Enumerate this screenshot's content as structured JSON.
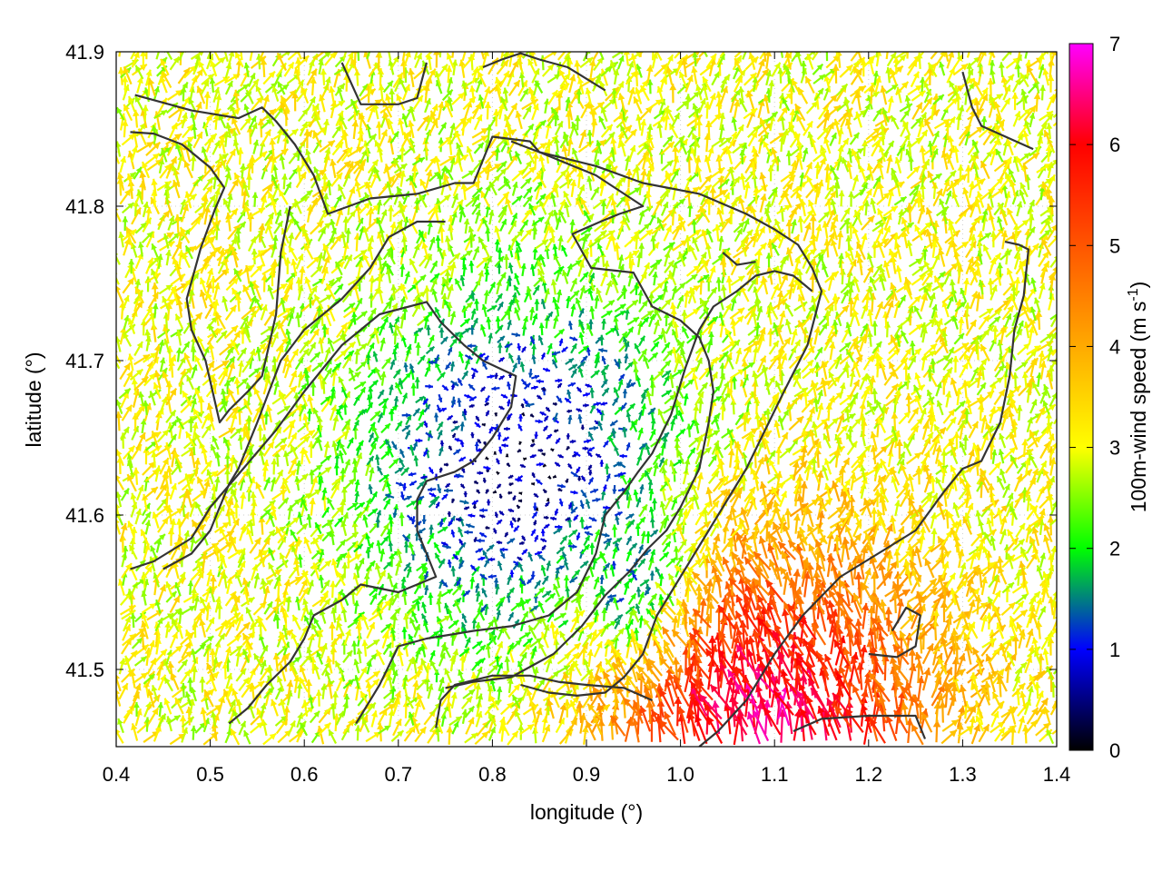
{
  "chart_data": {
    "type": "vector-field",
    "xlabel": "longitude (°)",
    "ylabel": "latitude (°)",
    "colorbar_label": "100m-wind speed (m s",
    "colorbar_label_sup": "-1",
    "colorbar_label_tail": ")",
    "xlim": [
      0.4,
      1.4
    ],
    "ylim": [
      41.45,
      41.9
    ],
    "x_ticks": [
      {
        "value": 0.4,
        "label": "0.4"
      },
      {
        "value": 0.5,
        "label": "0.5"
      },
      {
        "value": 0.6,
        "label": "0.6"
      },
      {
        "value": 0.7,
        "label": "0.7"
      },
      {
        "value": 0.8,
        "label": "0.8"
      },
      {
        "value": 0.9,
        "label": "0.9"
      },
      {
        "value": 1.0,
        "label": "1.0"
      },
      {
        "value": 1.1,
        "label": "1.1"
      },
      {
        "value": 1.2,
        "label": "1.2"
      },
      {
        "value": 1.3,
        "label": "1.3"
      },
      {
        "value": 1.4,
        "label": "1.4"
      }
    ],
    "y_ticks": [
      {
        "value": 41.5,
        "label": "41.5"
      },
      {
        "value": 41.6,
        "label": "41.6"
      },
      {
        "value": 41.7,
        "label": "41.7"
      },
      {
        "value": 41.8,
        "label": "41.8"
      },
      {
        "value": 41.9,
        "label": "41.9"
      }
    ],
    "colorbar": {
      "range": [
        0,
        7
      ],
      "ticks": [
        {
          "value": 0,
          "label": "0"
        },
        {
          "value": 1,
          "label": "1"
        },
        {
          "value": 2,
          "label": "2"
        },
        {
          "value": 3,
          "label": "3"
        },
        {
          "value": 4,
          "label": "4"
        },
        {
          "value": 5,
          "label": "5"
        },
        {
          "value": 6,
          "label": "6"
        },
        {
          "value": 7,
          "label": "7"
        }
      ],
      "stops": [
        {
          "value": 0,
          "color": "#000000"
        },
        {
          "value": 1,
          "color": "#0000ff"
        },
        {
          "value": 2,
          "color": "#00ff00"
        },
        {
          "value": 3,
          "color": "#ffff00"
        },
        {
          "value": 4,
          "color": "#ffaa00"
        },
        {
          "value": 5,
          "color": "#ff5500"
        },
        {
          "value": 6,
          "color": "#ff0000"
        },
        {
          "value": 7,
          "color": "#ff00ff"
        }
      ]
    },
    "grid": "dotted",
    "contour_color": "#333333",
    "contours": [
      [
        [
          0.42,
          41.872
        ],
        [
          0.48,
          41.862
        ],
        [
          0.53,
          41.857
        ],
        [
          0.555,
          41.864
        ],
        [
          0.57,
          41.855
        ],
        [
          0.59,
          41.84
        ],
        [
          0.61,
          41.82
        ],
        [
          0.625,
          41.795
        ],
        [
          0.67,
          41.805
        ],
        [
          0.72,
          41.808
        ],
        [
          0.76,
          41.815
        ],
        [
          0.78,
          41.815
        ],
        [
          0.8,
          41.845
        ],
        [
          0.84,
          41.842
        ],
        [
          0.85,
          41.835
        ],
        [
          0.87,
          41.83
        ],
        [
          0.91,
          41.82
        ],
        [
          0.96,
          41.8
        ],
        [
          0.935,
          41.795
        ],
        [
          0.915,
          41.79
        ],
        [
          0.885,
          41.782
        ],
        [
          0.905,
          41.76
        ],
        [
          0.95,
          41.757
        ],
        [
          0.97,
          41.735
        ],
        [
          1.0,
          41.726
        ],
        [
          1.02,
          41.715
        ],
        [
          1.03,
          41.7
        ],
        [
          1.035,
          41.68
        ],
        [
          1.03,
          41.66
        ],
        [
          1.02,
          41.63
        ],
        [
          1.0,
          41.605
        ],
        [
          0.985,
          41.59
        ],
        [
          0.965,
          41.578
        ],
        [
          0.945,
          41.563
        ],
        [
          0.92,
          41.548
        ],
        [
          0.895,
          41.528
        ],
        [
          0.865,
          41.51
        ],
        [
          0.82,
          41.495
        ],
        [
          0.78,
          41.492
        ],
        [
          0.75,
          41.488
        ]
      ],
      [
        [
          0.415,
          41.848
        ],
        [
          0.44,
          41.847
        ],
        [
          0.47,
          41.84
        ],
        [
          0.5,
          41.825
        ],
        [
          0.515,
          41.812
        ],
        [
          0.505,
          41.798
        ],
        [
          0.49,
          41.773
        ],
        [
          0.475,
          41.74
        ],
        [
          0.48,
          41.72
        ],
        [
          0.495,
          41.7
        ],
        [
          0.51,
          41.66
        ],
        [
          0.52,
          41.668
        ],
        [
          0.54,
          41.68
        ],
        [
          0.555,
          41.69
        ],
        [
          0.57,
          41.73
        ],
        [
          0.575,
          41.77
        ],
        [
          0.585,
          41.8
        ]
      ],
      [
        [
          0.64,
          41.893
        ],
        [
          0.66,
          41.866
        ],
        [
          0.7,
          41.866
        ],
        [
          0.72,
          41.87
        ],
        [
          0.73,
          41.893
        ]
      ],
      [
        [
          0.79,
          41.89
        ],
        [
          0.81,
          41.895
        ],
        [
          0.83,
          41.899
        ],
        [
          0.85,
          41.895
        ],
        [
          0.88,
          41.89
        ],
        [
          0.92,
          41.875
        ]
      ],
      [
        [
          0.82,
          41.842
        ],
        [
          0.85,
          41.835
        ],
        [
          0.91,
          41.826
        ],
        [
          0.96,
          41.815
        ],
        [
          1.02,
          41.808
        ],
        [
          1.07,
          41.795
        ],
        [
          1.1,
          41.785
        ],
        [
          1.125,
          41.775
        ],
        [
          1.14,
          41.76
        ],
        [
          1.15,
          41.745
        ],
        [
          1.135,
          41.71
        ],
        [
          1.11,
          41.68
        ],
        [
          1.09,
          41.655
        ],
        [
          1.07,
          41.63
        ],
        [
          1.05,
          41.61
        ],
        [
          1.025,
          41.585
        ],
        [
          1.0,
          41.56
        ],
        [
          0.975,
          41.535
        ],
        [
          0.96,
          41.51
        ],
        [
          0.94,
          41.495
        ],
        [
          0.92,
          41.485
        ],
        [
          0.89,
          41.483
        ],
        [
          0.86,
          41.485
        ],
        [
          0.83,
          41.49
        ]
      ],
      [
        [
          1.045,
          41.77
        ],
        [
          1.06,
          41.762
        ],
        [
          1.08,
          41.764
        ]
      ],
      [
        [
          1.3,
          41.887
        ],
        [
          1.31,
          41.864
        ],
        [
          1.32,
          41.852
        ],
        [
          1.375,
          41.837
        ]
      ],
      [
        [
          1.345,
          41.777
        ],
        [
          1.36,
          41.775
        ],
        [
          1.37,
          41.772
        ],
        [
          1.365,
          41.742
        ],
        [
          1.355,
          41.72
        ],
        [
          1.35,
          41.69
        ],
        [
          1.34,
          41.66
        ],
        [
          1.32,
          41.635
        ],
        [
          1.3,
          41.63
        ],
        [
          1.28,
          41.615
        ],
        [
          1.25,
          41.59
        ],
        [
          1.21,
          41.575
        ],
        [
          1.17,
          41.56
        ],
        [
          1.13,
          41.535
        ],
        [
          1.1,
          41.51
        ],
        [
          1.07,
          41.48
        ],
        [
          1.04,
          41.46
        ],
        [
          1.02,
          41.45
        ]
      ],
      [
        [
          1.2,
          41.51
        ],
        [
          1.23,
          41.508
        ],
        [
          1.25,
          41.515
        ],
        [
          1.255,
          41.535
        ],
        [
          1.24,
          41.54
        ],
        [
          1.225,
          41.525
        ]
      ],
      [
        [
          1.12,
          41.46
        ],
        [
          1.15,
          41.468
        ],
        [
          1.2,
          41.47
        ],
        [
          1.25,
          41.47
        ],
        [
          1.26,
          41.455
        ]
      ],
      [
        [
          0.45,
          41.565
        ],
        [
          0.48,
          41.575
        ],
        [
          0.5,
          41.59
        ],
        [
          0.52,
          41.62
        ],
        [
          0.53,
          41.63
        ],
        [
          0.55,
          41.66
        ],
        [
          0.575,
          41.7
        ],
        [
          0.6,
          41.72
        ],
        [
          0.64,
          41.74
        ],
        [
          0.67,
          41.76
        ],
        [
          0.69,
          41.78
        ],
        [
          0.72,
          41.79
        ],
        [
          0.75,
          41.79
        ]
      ],
      [
        [
          0.415,
          41.565
        ],
        [
          0.44,
          41.57
        ],
        [
          0.48,
          41.585
        ],
        [
          0.5,
          41.605
        ],
        [
          0.535,
          41.63
        ],
        [
          0.57,
          41.655
        ],
        [
          0.6,
          41.68
        ],
        [
          0.64,
          41.71
        ],
        [
          0.68,
          41.73
        ],
        [
          0.73,
          41.738
        ],
        [
          0.745,
          41.725
        ],
        [
          0.77,
          41.71
        ],
        [
          0.79,
          41.7
        ],
        [
          0.825,
          41.69
        ],
        [
          0.82,
          41.67
        ],
        [
          0.8,
          41.65
        ],
        [
          0.78,
          41.635
        ],
        [
          0.76,
          41.628
        ],
        [
          0.73,
          41.622
        ],
        [
          0.72,
          41.61
        ],
        [
          0.72,
          41.59
        ],
        [
          0.73,
          41.575
        ],
        [
          0.74,
          41.56
        ],
        [
          0.7,
          41.55
        ],
        [
          0.66,
          41.555
        ],
        [
          0.64,
          41.545
        ],
        [
          0.61,
          41.535
        ],
        [
          0.6,
          41.52
        ],
        [
          0.585,
          41.505
        ],
        [
          0.56,
          41.49
        ],
        [
          0.54,
          41.475
        ],
        [
          0.52,
          41.465
        ]
      ],
      [
        [
          0.655,
          41.465
        ],
        [
          0.68,
          41.49
        ],
        [
          0.7,
          41.515
        ],
        [
          0.73,
          41.52
        ],
        [
          0.78,
          41.525
        ],
        [
          0.82,
          41.528
        ],
        [
          0.86,
          41.535
        ],
        [
          0.89,
          41.55
        ],
        [
          0.91,
          41.575
        ],
        [
          0.92,
          41.6
        ],
        [
          0.94,
          41.615
        ],
        [
          0.955,
          41.628
        ],
        [
          0.97,
          41.64
        ],
        [
          0.99,
          41.665
        ],
        [
          1.005,
          41.695
        ],
        [
          1.02,
          41.72
        ],
        [
          1.035,
          41.735
        ],
        [
          1.06,
          41.745
        ],
        [
          1.08,
          41.755
        ],
        [
          1.1,
          41.758
        ],
        [
          1.12,
          41.755
        ],
        [
          1.14,
          41.745
        ]
      ],
      [
        [
          0.74,
          41.462
        ],
        [
          0.745,
          41.48
        ],
        [
          0.76,
          41.49
        ],
        [
          0.8,
          41.496
        ],
        [
          0.84,
          41.496
        ],
        [
          0.87,
          41.492
        ],
        [
          0.9,
          41.49
        ],
        [
          0.94,
          41.488
        ],
        [
          0.97,
          41.48
        ]
      ]
    ],
    "wind_field": {
      "grid_step_deg": [
        0.0125,
        0.0056
      ],
      "dominant_direction": "north to north-east",
      "max_speed": 6.8,
      "description_regions": [
        {
          "region": "center low-wind basin",
          "speed_range": [
            0.2,
            1.5
          ]
        },
        {
          "region": "north and west margins",
          "speed_range": [
            2.5,
            4.5
          ]
        },
        {
          "region": "south-east corner",
          "speed_range": [
            4.5,
            6.8
          ]
        }
      ]
    }
  }
}
